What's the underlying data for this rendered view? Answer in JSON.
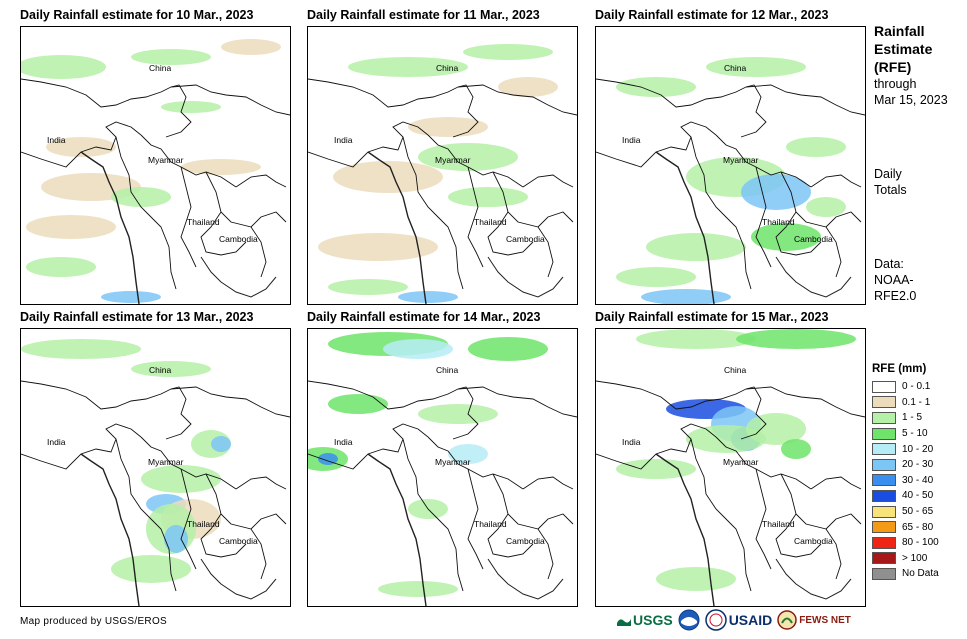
{
  "panels": [
    {
      "title": "Daily Rainfall estimate for 10 Mar., 2023",
      "labels": {
        "china": "China",
        "india": "India",
        "myanmar": "Myanmar",
        "thailand": "Thailand",
        "cambodia": "Cambodia"
      }
    },
    {
      "title": "Daily Rainfall estimate for 11 Mar., 2023",
      "labels": {
        "china": "China",
        "india": "India",
        "myanmar": "Myanmar",
        "thailand": "Thailand",
        "cambodia": "Cambodia"
      }
    },
    {
      "title": "Daily Rainfall estimate for 12 Mar., 2023",
      "labels": {
        "china": "China",
        "india": "India",
        "myanmar": "Myanmar",
        "thailand": "Thailand",
        "cambodia": "Cambodia"
      }
    },
    {
      "title": "Daily Rainfall estimate for 13 Mar., 2023",
      "labels": {
        "china": "China",
        "india": "India",
        "myanmar": "Myanmar",
        "thailand": "Thailand",
        "cambodia": "Cambodia"
      }
    },
    {
      "title": "Daily Rainfall estimate for 14 Mar., 2023",
      "labels": {
        "china": "China",
        "india": "India",
        "myanmar": "Myanmar",
        "thailand": "Thailand",
        "cambodia": "Cambodia"
      }
    },
    {
      "title": "Daily Rainfall estimate for 15 Mar., 2023",
      "labels": {
        "china": "China",
        "india": "India",
        "myanmar": "Myanmar",
        "thailand": "Thailand",
        "cambodia": "Cambodia"
      }
    }
  ],
  "sidebar": {
    "title_line1": "Rainfall",
    "title_line2": "Estimate",
    "title_line3": "(RFE)",
    "through": "through",
    "date": "Mar 15, 2023",
    "daily": "Daily",
    "totals": "Totals",
    "data_label": "Data:",
    "data_source1": "NOAA-",
    "data_source2": "RFE2.0"
  },
  "legend": {
    "title": "RFE (mm)",
    "items": [
      {
        "label": "0 - 0.1",
        "color": "#ffffff"
      },
      {
        "label": "0.1 - 1",
        "color": "#ecdcbc"
      },
      {
        "label": "1 - 5",
        "color": "#b4f0a6"
      },
      {
        "label": "5 - 10",
        "color": "#6ee46a"
      },
      {
        "label": "10 - 20",
        "color": "#b6ecf6"
      },
      {
        "label": "20 - 30",
        "color": "#7cc6f6"
      },
      {
        "label": "30 - 40",
        "color": "#3a8ef0"
      },
      {
        "label": "40 - 50",
        "color": "#1a4ee0"
      },
      {
        "label": "50 - 65",
        "color": "#f8e27a"
      },
      {
        "label": "65 - 80",
        "color": "#f59a14"
      },
      {
        "label": "80 - 100",
        "color": "#f02414"
      },
      {
        "label": "> 100",
        "color": "#a81818"
      },
      {
        "label": "No Data",
        "color": "#909090"
      }
    ]
  },
  "footer": {
    "credit": "Map produced by USGS/EROS",
    "logo_usgs": "USGS",
    "logo_usaid": "USAID",
    "logo_fewsnet": "FEWS NET"
  }
}
